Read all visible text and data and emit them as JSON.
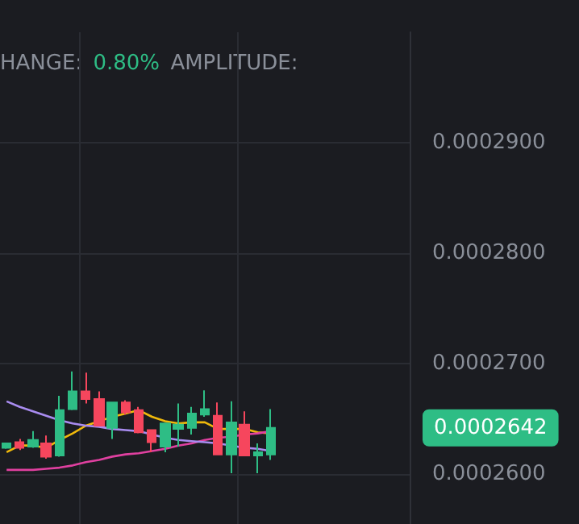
{
  "chart_data": {
    "type": "candlestick",
    "categories": [
      null,
      null,
      null,
      null,
      null,
      null,
      null,
      null,
      null,
      null,
      null,
      null,
      null,
      null,
      null,
      null,
      null,
      null,
      null,
      null,
      null,
      null,
      null,
      null,
      null,
      null,
      null,
      null,
      null,
      null,
      null
    ],
    "ohlc": [
      [
        0.0002624,
        0.0002628,
        0.0002623,
        0.0002628
      ],
      [
        0.0002629,
        0.0002632,
        0.0002622,
        0.0002624
      ],
      [
        0.0002625,
        0.0002639,
        0.0002624,
        0.0002631
      ],
      [
        0.0002628,
        0.0002635,
        0.0002614,
        0.0002616
      ],
      [
        0.0002617,
        0.0002671,
        0.0002616,
        0.0002658
      ],
      [
        0.0002659,
        0.0002693,
        0.0002658,
        0.0002675
      ],
      [
        0.0002675,
        0.0002692,
        0.0002664,
        0.0002668
      ],
      [
        0.0002668,
        0.0002675,
        0.0002644,
        0.0002644
      ],
      [
        0.0002642,
        0.0002665,
        0.0002632,
        0.0002665
      ],
      [
        0.0002665,
        0.0002667,
        0.0002654,
        0.0002656
      ],
      [
        0.0002658,
        0.0002661,
        0.0002637,
        0.0002638
      ],
      [
        0.000264,
        0.000264,
        0.000262,
        0.0002629
      ],
      [
        0.0002625,
        0.0002646,
        0.000262,
        0.0002646
      ],
      [
        0.0002641,
        0.0002664,
        0.0002625,
        0.0002645
      ],
      [
        0.0002642,
        0.0002661,
        0.0002636,
        0.0002655
      ],
      [
        0.0002654,
        0.0002676,
        0.0002652,
        0.0002659
      ],
      [
        0.0002653,
        0.0002665,
        0.0002618,
        0.0002618
      ],
      [
        0.0002618,
        0.0002666,
        0.0002601,
        0.0002647
      ],
      [
        0.0002645,
        0.0002657,
        0.0002617,
        0.0002617
      ],
      [
        0.0002617,
        0.0002628,
        0.0002601,
        0.000262
      ],
      [
        0.0002618,
        0.0002659,
        0.0002613,
        0.0002642
      ],
      null,
      null,
      null,
      null,
      null,
      null,
      null,
      null,
      null,
      null
    ],
    "colors": [
      "#2ebd85",
      "#f6465d",
      "#2ebd85",
      "#f6465d",
      "#2ebd85",
      "#2ebd85",
      "#f6465d",
      "#f6465d",
      "#2ebd85",
      "#f6465d",
      "#f6465d",
      "#f6465d",
      "#2ebd85",
      "#2ebd85",
      "#2ebd85",
      "#2ebd85",
      "#f6465d",
      "#2ebd85",
      "#f6465d",
      "#2ebd85",
      "#2ebd85",
      null,
      null,
      null,
      null,
      null,
      null,
      null,
      null,
      null,
      null
    ],
    "series": [
      {
        "type": "line",
        "color": "#f0b90b",
        "values": [
          0.000262,
          0.0002626,
          0.0002626,
          0.0002624,
          0.0002631,
          0.0002637,
          0.0002644,
          0.0002648,
          0.0002652,
          0.0002655,
          0.0002658,
          0.0002652,
          0.0002648,
          0.0002646,
          0.0002647,
          0.0002647,
          0.0002641,
          0.0002641,
          0.0002641,
          0.0002638,
          0.0002637,
          null,
          null,
          null,
          null,
          null,
          null,
          null,
          null,
          null,
          null
        ]
      },
      {
        "type": "line",
        "color": "#e040a0",
        "values": [
          0.0002604,
          0.0002604,
          0.0002604,
          0.0002605,
          0.0002606,
          0.0002608,
          0.0002611,
          0.0002613,
          0.0002616,
          0.0002618,
          0.0002619,
          0.0002621,
          0.0002623,
          0.0002626,
          0.0002628,
          0.0002631,
          0.0002633,
          0.0002634,
          0.0002636,
          0.0002637,
          0.0002639,
          null,
          null,
          null,
          null,
          null,
          null,
          null,
          null,
          null,
          null
        ]
      },
      {
        "type": "line",
        "color": "#a98cf0",
        "values": [
          0.0002666,
          0.0002661,
          0.0002657,
          0.0002653,
          0.0002649,
          0.0002646,
          0.0002644,
          0.0002643,
          0.0002641,
          0.000264,
          0.0002639,
          0.0002636,
          0.0002633,
          0.0002631,
          0.000263,
          0.0002629,
          0.0002628,
          0.0002626,
          0.0002624,
          0.0002623,
          0.0002621,
          null,
          null,
          null,
          null,
          null,
          null,
          null,
          null,
          null,
          null
        ]
      }
    ],
    "ylim": [
      0.0002555,
      0.0003
    ],
    "yticks": [
      {
        "value": 0.00026,
        "label": "0.0002600"
      },
      {
        "value": 0.00027,
        "label": "0.0002700"
      },
      {
        "value": 0.00028,
        "label": "0.0002800"
      },
      {
        "value": 0.00029,
        "label": "0.0002900"
      }
    ],
    "grid": true,
    "tick_labels": "y",
    "annotations": [
      "HANGE:",
      "0.80%",
      "AMPLITUDE:",
      "0.0002642"
    ]
  }
}
